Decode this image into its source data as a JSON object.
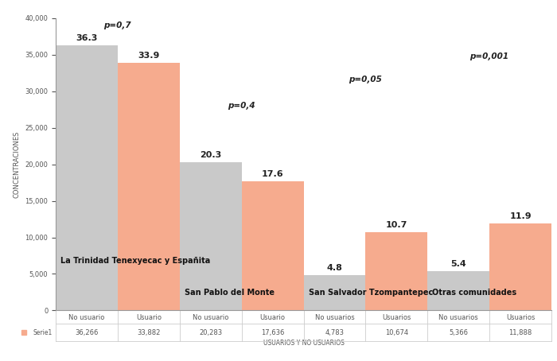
{
  "chart_data": {
    "type": "bar",
    "categories": [
      "No usuario",
      "Usuario",
      "No usuario",
      "Usuario",
      "No usuarios",
      "Usuarios",
      "No usuarios",
      "Usuarios"
    ],
    "values": [
      36266,
      33882,
      20283,
      17636,
      4783,
      10674,
      5366,
      11888
    ],
    "value_labels": [
      "36.3",
      "33.9",
      "20.3",
      "17.6",
      "4.8",
      "10.7",
      "5.4",
      "11.9"
    ],
    "colors": [
      "#c9c9c9",
      "#f6ab8e",
      "#c9c9c9",
      "#f6ab8e",
      "#c9c9c9",
      "#f6ab8e",
      "#c9c9c9",
      "#f6ab8e"
    ],
    "data_labels": true,
    "x_label": "USUARIOS Y NO USUARIOS",
    "y_label": "CONCENTRACIONES",
    "ylim": [
      0,
      40000
    ],
    "yticks": [
      0,
      {
        "value": 5000,
        "label": "5,000"
      },
      {
        "value": 10000,
        "label": "10,000"
      },
      {
        "value": 15000,
        "label": "15,000"
      },
      {
        "value": 20000,
        "label": "20,000"
      },
      {
        "value": 25000,
        "label": "25,000"
      },
      {
        "value": 30000,
        "label": "30,000"
      },
      {
        "value": 35000,
        "label": "35,000"
      },
      {
        "value": 40000,
        "label": "40,000"
      }
    ],
    "grid": false,
    "groups": [
      {
        "label": "La Trinidad Tenexyecac y Españita",
        "p": "p=0,7"
      },
      {
        "label": "San Pablo del Monte",
        "p": "p=0,4"
      },
      {
        "label": "San Salvador Tzompantepec",
        "p": "p=0,05"
      },
      {
        "label": "Otras comunidades",
        "p": "p=0,001"
      }
    ],
    "data_table": {
      "name": "Serie1",
      "color": "#f6ab8e",
      "cells": [
        "36,266",
        "33,882",
        "20,283",
        "17,636",
        "4,783",
        "10,674",
        "5,366",
        "11,888"
      ]
    }
  }
}
